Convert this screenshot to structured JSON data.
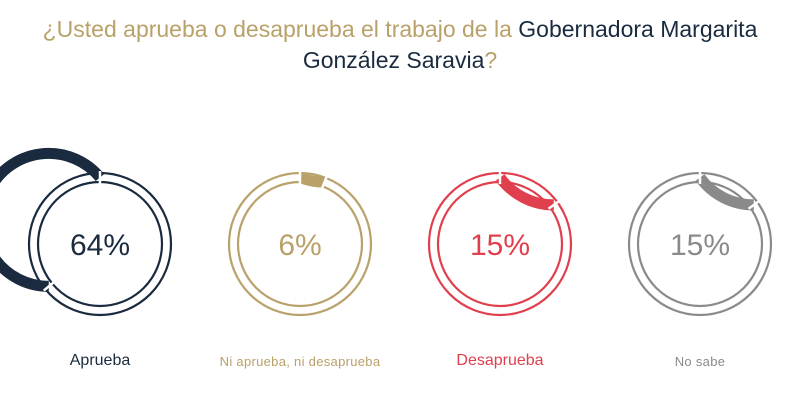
{
  "header": {
    "title_part1": "¿Usted aprueba o desaprueba el trabajo de la ",
    "title_highlight_line1": "Gobernadora Margarita",
    "title_highlight_line2": "González Saravia",
    "title_part2": "?"
  },
  "chart_data": {
    "type": "donut",
    "series": [
      {
        "name": "Aprueba",
        "value": 64,
        "display": "64%",
        "color": "#1a2b3f"
      },
      {
        "name": "Ni aprueba, ni desaprueba",
        "value": 6,
        "display": "6%",
        "color": "#b9a16a"
      },
      {
        "name": "Desaprueba",
        "value": 15,
        "display": "15%",
        "color": "#e0404e"
      },
      {
        "name": "No sabe",
        "value": 15,
        "display": "15%",
        "color": "#8a8a8a"
      }
    ],
    "max": 100
  }
}
